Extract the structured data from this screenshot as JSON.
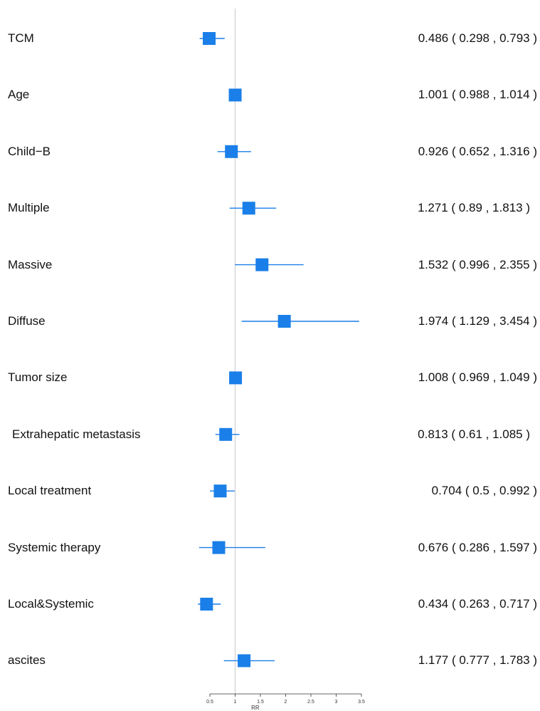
{
  "chart_data": {
    "type": "forest",
    "xlabel": "RR",
    "xlim": [
      0.5,
      3.5
    ],
    "xticks": [
      "0.5",
      "1",
      "1.5",
      "2",
      "2.5",
      "3",
      "3.5"
    ],
    "reference_line": 1,
    "marker_color": "#1a7fe8",
    "rows": [
      {
        "label": "TCM",
        "rr": 0.486,
        "lower": 0.298,
        "upper": 0.793,
        "text": "0.486 ( 0.298 , 0.793 )"
      },
      {
        "label": "Age",
        "rr": 1.001,
        "lower": 0.988,
        "upper": 1.014,
        "text": "1.001 ( 0.988 , 1.014 )"
      },
      {
        "label": "Child−B",
        "rr": 0.926,
        "lower": 0.652,
        "upper": 1.316,
        "text": "0.926 ( 0.652 , 1.316 )"
      },
      {
        "label": "Multiple",
        "rr": 1.271,
        "lower": 0.89,
        "upper": 1.813,
        "text": "1.271 ( 0.89 , 1.813 )"
      },
      {
        "label": "Massive",
        "rr": 1.532,
        "lower": 0.996,
        "upper": 2.355,
        "text": "1.532 ( 0.996 , 2.355 )"
      },
      {
        "label": "Diffuse",
        "rr": 1.974,
        "lower": 1.129,
        "upper": 3.454,
        "text": "1.974 ( 1.129 , 3.454 )"
      },
      {
        "label": "Tumor size",
        "rr": 1.008,
        "lower": 0.969,
        "upper": 1.049,
        "text": "1.008 ( 0.969 , 1.049 )"
      },
      {
        "label": "Extrahepatic metastasis",
        "rr": 0.813,
        "lower": 0.61,
        "upper": 1.085,
        "text": "0.813 ( 0.61 , 1.085 )"
      },
      {
        "label": "Local treatment",
        "rr": 0.704,
        "lower": 0.5,
        "upper": 0.992,
        "text": "0.704 ( 0.5 , 0.992 )"
      },
      {
        "label": "Systemic therapy",
        "rr": 0.676,
        "lower": 0.286,
        "upper": 1.597,
        "text": "0.676 ( 0.286 , 1.597 )"
      },
      {
        "label": "Local&Systemic",
        "rr": 0.434,
        "lower": 0.263,
        "upper": 0.717,
        "text": "0.434 ( 0.263 , 0.717 )"
      },
      {
        "label": "ascites",
        "rr": 1.177,
        "lower": 0.777,
        "upper": 1.783,
        "text": "1.177 ( 0.777 , 1.783 )"
      }
    ]
  }
}
